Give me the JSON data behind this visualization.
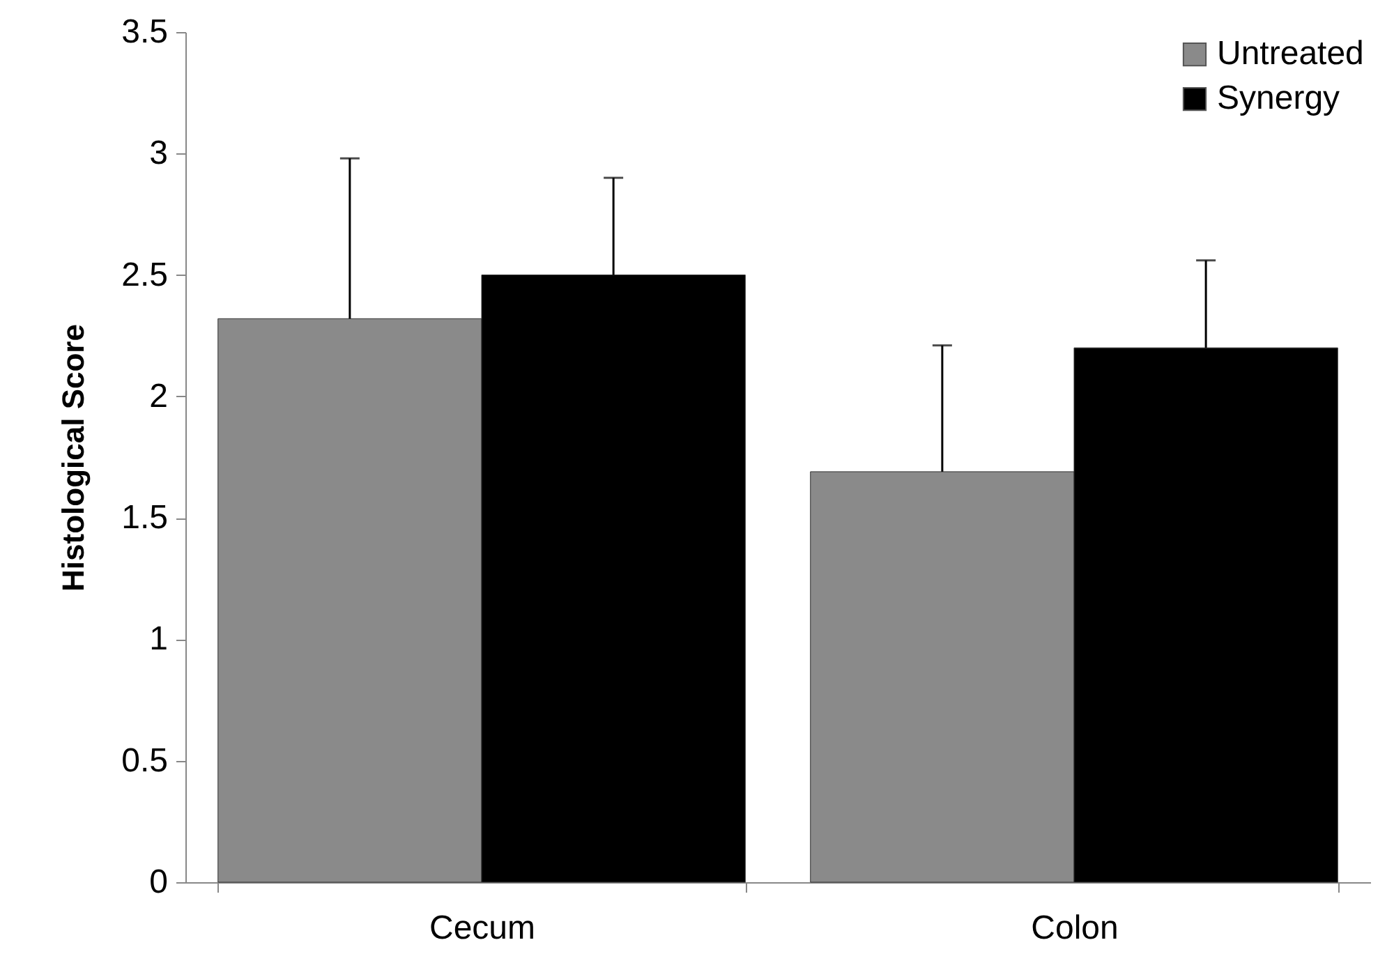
{
  "chart_data": {
    "type": "bar",
    "ylabel": "Histological Score",
    "categories": [
      "Cecum",
      "Colon"
    ],
    "series": [
      {
        "name": "Untreated",
        "color": "#8a8a8a",
        "values": [
          2.32,
          1.69
        ],
        "errors": [
          [
            2.32,
            2.98
          ],
          [
            1.69,
            2.21
          ]
        ]
      },
      {
        "name": "Synergy",
        "color": "#000000",
        "values": [
          2.5,
          2.2
        ],
        "errors": [
          [
            2.5,
            2.9
          ],
          [
            2.2,
            2.56
          ]
        ]
      }
    ],
    "ylim": [
      0,
      3.5
    ],
    "yticks": [
      0,
      0.5,
      1,
      1.5,
      2,
      2.5,
      3,
      3.5
    ],
    "grid": false,
    "legend": "top right"
  }
}
